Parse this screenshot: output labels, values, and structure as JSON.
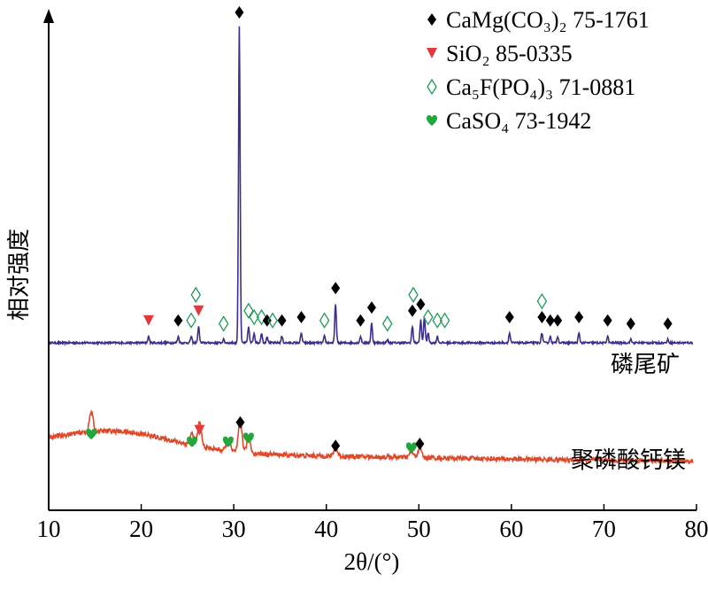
{
  "chart_data": {
    "type": "line",
    "xlabel": "2θ/(°)",
    "ylabel": "相对强度",
    "xlim": [
      10,
      80
    ],
    "x_ticks": [
      10,
      20,
      30,
      40,
      50,
      60,
      70,
      80
    ],
    "y_ticks_shown": false,
    "legend_position": "top-right",
    "legend": [
      {
        "marker": "diamond-filled",
        "label": "CaMg(CO₃)₂ 75-1761",
        "color": "#000000"
      },
      {
        "marker": "triangle-down",
        "label": "SiO₂ 85-0335",
        "color": "#e03a3a"
      },
      {
        "marker": "diamond-open",
        "label": "Ca₅F(PO₄)₃ 71-0881",
        "color": "#1f9a5a"
      },
      {
        "marker": "heart",
        "label": "CaSO₄ 73-1942",
        "color": "#22a83a"
      }
    ],
    "series": [
      {
        "name": "磷尾矿",
        "color": "#3a2f8a",
        "baseline": 0.06,
        "peaks": [
          [
            20.8,
            0.02
          ],
          [
            24.0,
            0.02
          ],
          [
            25.4,
            0.02
          ],
          [
            26.2,
            0.05
          ],
          [
            28.9,
            0.01
          ],
          [
            30.6,
            0.98
          ],
          [
            31.6,
            0.05
          ],
          [
            32.2,
            0.03
          ],
          [
            33.0,
            0.03
          ],
          [
            33.6,
            0.02
          ],
          [
            35.2,
            0.02
          ],
          [
            37.3,
            0.03
          ],
          [
            39.8,
            0.02
          ],
          [
            41.0,
            0.12
          ],
          [
            43.7,
            0.02
          ],
          [
            44.9,
            0.06
          ],
          [
            46.6,
            0.01
          ],
          [
            49.3,
            0.05
          ],
          [
            50.2,
            0.07
          ],
          [
            50.6,
            0.08
          ],
          [
            51.0,
            0.03
          ],
          [
            52.0,
            0.02
          ],
          [
            59.8,
            0.03
          ],
          [
            63.3,
            0.03
          ],
          [
            64.2,
            0.02
          ],
          [
            65.0,
            0.02
          ],
          [
            67.3,
            0.03
          ],
          [
            70.4,
            0.02
          ],
          [
            72.9,
            0.01
          ],
          [
            76.9,
            0.01
          ]
        ],
        "markers": [
          {
            "x": 30.6,
            "symbol": "diamond-filled"
          },
          {
            "x": 20.8,
            "symbol": "triangle-down"
          },
          {
            "x": 26.2,
            "symbol": "triangle-down"
          },
          {
            "x": 24.0,
            "symbol": "diamond-filled"
          },
          {
            "x": 25.4,
            "symbol": "diamond-open"
          },
          {
            "x": 25.9,
            "symbol": "diamond-open"
          },
          {
            "x": 28.9,
            "symbol": "diamond-open"
          },
          {
            "x": 31.6,
            "symbol": "diamond-open"
          },
          {
            "x": 32.2,
            "symbol": "diamond-open"
          },
          {
            "x": 33.0,
            "symbol": "diamond-open"
          },
          {
            "x": 33.6,
            "symbol": "diamond-filled"
          },
          {
            "x": 34.2,
            "symbol": "diamond-open"
          },
          {
            "x": 35.2,
            "symbol": "diamond-filled"
          },
          {
            "x": 37.3,
            "symbol": "diamond-filled"
          },
          {
            "x": 39.8,
            "symbol": "diamond-open"
          },
          {
            "x": 41.0,
            "symbol": "diamond-filled"
          },
          {
            "x": 43.7,
            "symbol": "diamond-filled"
          },
          {
            "x": 44.9,
            "symbol": "diamond-filled"
          },
          {
            "x": 46.6,
            "symbol": "diamond-open"
          },
          {
            "x": 49.3,
            "symbol": "diamond-filled"
          },
          {
            "x": 49.4,
            "symbol": "diamond-open"
          },
          {
            "x": 50.2,
            "symbol": "diamond-filled"
          },
          {
            "x": 51.0,
            "symbol": "diamond-open"
          },
          {
            "x": 52.0,
            "symbol": "diamond-open"
          },
          {
            "x": 52.8,
            "symbol": "diamond-open"
          },
          {
            "x": 59.8,
            "symbol": "diamond-filled"
          },
          {
            "x": 63.3,
            "symbol": "diamond-filled"
          },
          {
            "x": 63.3,
            "symbol": "diamond-open"
          },
          {
            "x": 64.2,
            "symbol": "diamond-filled"
          },
          {
            "x": 65.0,
            "symbol": "diamond-filled"
          },
          {
            "x": 67.3,
            "symbol": "diamond-filled"
          },
          {
            "x": 70.4,
            "symbol": "diamond-filled"
          },
          {
            "x": 72.9,
            "symbol": "diamond-filled"
          },
          {
            "x": 76.9,
            "symbol": "diamond-filled"
          }
        ]
      },
      {
        "name": "聚磷酸钙镁",
        "color": "#e0482a",
        "baseline": 0.05,
        "peaks": [
          [
            14.6,
            0.05
          ],
          [
            25.5,
            0.03
          ],
          [
            26.3,
            0.06
          ],
          [
            29.4,
            0.03
          ],
          [
            30.7,
            0.08
          ],
          [
            31.6,
            0.04
          ],
          [
            41.0,
            0.02
          ],
          [
            49.2,
            0.015
          ],
          [
            50.1,
            0.025
          ]
        ],
        "markers": [
          {
            "x": 14.6,
            "symbol": "heart"
          },
          {
            "x": 26.3,
            "symbol": "triangle-down"
          },
          {
            "x": 25.5,
            "symbol": "heart"
          },
          {
            "x": 29.4,
            "symbol": "heart"
          },
          {
            "x": 30.7,
            "symbol": "diamond-filled"
          },
          {
            "x": 31.6,
            "symbol": "heart"
          },
          {
            "x": 41.0,
            "symbol": "diamond-filled"
          },
          {
            "x": 49.2,
            "symbol": "heart"
          },
          {
            "x": 50.1,
            "symbol": "diamond-filled"
          }
        ]
      }
    ]
  }
}
